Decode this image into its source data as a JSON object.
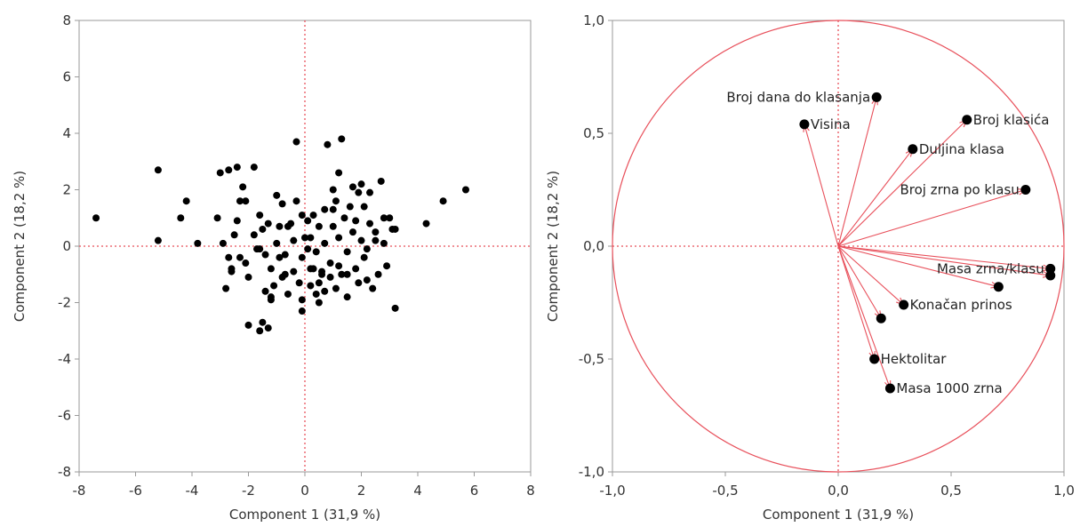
{
  "chart_data": [
    {
      "type": "scatter",
      "xlabel": "Component 1  (31,9 %)",
      "ylabel": "Component 2  (18,2 %)",
      "xlim": [
        -8,
        8
      ],
      "ylim": [
        -8,
        8
      ],
      "x_ticks": [
        "-8",
        "-6",
        "-4",
        "-2",
        "0",
        "2",
        "4",
        "6",
        "8"
      ],
      "y_ticks": [
        "-8",
        "-6",
        "-4",
        "-2",
        "0",
        "2",
        "4",
        "6",
        "8"
      ],
      "reference_lines": {
        "x": 0,
        "y": 0,
        "color": "#e8505b",
        "style": "dotted"
      },
      "point_color": "#000000",
      "points": [
        [
          -7.4,
          1.0
        ],
        [
          -5.2,
          2.7
        ],
        [
          -5.2,
          0.2
        ],
        [
          -4.2,
          1.6
        ],
        [
          -4.4,
          1.0
        ],
        [
          -3.8,
          0.1
        ],
        [
          -3.1,
          1.0
        ],
        [
          -3.0,
          2.6
        ],
        [
          -2.9,
          0.1
        ],
        [
          -2.7,
          -0.4
        ],
        [
          -2.8,
          -1.5
        ],
        [
          -2.6,
          -0.8
        ],
        [
          -2.7,
          2.7
        ],
        [
          -2.4,
          2.8
        ],
        [
          -2.3,
          1.6
        ],
        [
          -2.4,
          0.9
        ],
        [
          -2.3,
          -0.4
        ],
        [
          -2.5,
          0.4
        ],
        [
          -2.2,
          2.1
        ],
        [
          -2.1,
          1.6
        ],
        [
          -2.1,
          -0.6
        ],
        [
          -2.0,
          -2.8
        ],
        [
          -1.8,
          2.8
        ],
        [
          -1.8,
          0.4
        ],
        [
          -1.7,
          -0.1
        ],
        [
          -1.6,
          1.1
        ],
        [
          -1.5,
          0.6
        ],
        [
          -1.4,
          -0.3
        ],
        [
          -1.6,
          -3.0
        ],
        [
          -1.5,
          -2.7
        ],
        [
          -1.4,
          -1.6
        ],
        [
          -1.3,
          0.8
        ],
        [
          -1.2,
          -0.8
        ],
        [
          -1.2,
          -1.8
        ],
        [
          -1.1,
          -1.4
        ],
        [
          -1.0,
          1.8
        ],
        [
          -1.3,
          -2.9
        ],
        [
          -1.0,
          0.1
        ],
        [
          -0.9,
          -0.4
        ],
        [
          -0.9,
          0.7
        ],
        [
          -0.8,
          1.5
        ],
        [
          -0.7,
          -1.0
        ],
        [
          -0.7,
          -0.3
        ],
        [
          -0.6,
          -1.7
        ],
        [
          -0.5,
          0.8
        ],
        [
          -0.4,
          0.2
        ],
        [
          -0.4,
          -0.9
        ],
        [
          -0.3,
          1.6
        ],
        [
          -0.2,
          -1.3
        ],
        [
          -0.3,
          3.7
        ],
        [
          -0.1,
          -0.4
        ],
        [
          -0.1,
          1.1
        ],
        [
          -0.1,
          -1.9
        ],
        [
          -0.1,
          -2.3
        ],
        [
          0.1,
          0.9
        ],
        [
          0.1,
          -0.1
        ],
        [
          0.2,
          -0.8
        ],
        [
          0.2,
          0.3
        ],
        [
          0.2,
          -1.4
        ],
        [
          0.3,
          1.1
        ],
        [
          0.4,
          -0.2
        ],
        [
          0.5,
          0.7
        ],
        [
          0.5,
          -1.3
        ],
        [
          0.5,
          -2.0
        ],
        [
          0.6,
          -0.9
        ],
        [
          0.7,
          0.1
        ],
        [
          0.7,
          1.3
        ],
        [
          0.7,
          -1.6
        ],
        [
          0.8,
          3.6
        ],
        [
          0.9,
          -1.1
        ],
        [
          0.9,
          -0.6
        ],
        [
          1.0,
          0.7
        ],
        [
          1.0,
          2.0
        ],
        [
          1.1,
          -1.5
        ],
        [
          1.1,
          1.6
        ],
        [
          1.2,
          -0.7
        ],
        [
          1.2,
          2.6
        ],
        [
          1.2,
          0.3
        ],
        [
          1.3,
          3.8
        ],
        [
          1.3,
          -1.0
        ],
        [
          1.4,
          1.0
        ],
        [
          1.5,
          -0.2
        ],
        [
          1.5,
          -1.8
        ],
        [
          1.6,
          1.4
        ],
        [
          1.7,
          2.1
        ],
        [
          1.7,
          0.5
        ],
        [
          1.8,
          -0.8
        ],
        [
          1.9,
          1.9
        ],
        [
          1.9,
          -1.3
        ],
        [
          2.0,
          0.2
        ],
        [
          2.0,
          2.2
        ],
        [
          2.1,
          -0.4
        ],
        [
          2.1,
          1.4
        ],
        [
          2.2,
          -0.1
        ],
        [
          2.2,
          -1.2
        ],
        [
          2.3,
          0.8
        ],
        [
          2.3,
          1.9
        ],
        [
          2.4,
          -1.5
        ],
        [
          2.5,
          0.5
        ],
        [
          2.6,
          -1.0
        ],
        [
          2.7,
          2.3
        ],
        [
          2.8,
          1.0
        ],
        [
          2.8,
          0.1
        ],
        [
          2.9,
          -0.7
        ],
        [
          3.0,
          1.0
        ],
        [
          3.1,
          0.6
        ],
        [
          3.2,
          0.6
        ],
        [
          3.2,
          -2.2
        ],
        [
          4.3,
          0.8
        ],
        [
          4.9,
          1.6
        ],
        [
          5.7,
          2.0
        ],
        [
          -2.6,
          -0.9
        ],
        [
          -1.6,
          -0.1
        ],
        [
          -0.6,
          0.7
        ],
        [
          0.4,
          -1.7
        ],
        [
          1.0,
          1.3
        ],
        [
          -1.2,
          -1.9
        ],
        [
          0.6,
          -1.0
        ],
        [
          1.8,
          0.9
        ],
        [
          -2.0,
          -1.1
        ],
        [
          0.0,
          0.3
        ],
        [
          1.5,
          -1.0
        ],
        [
          2.5,
          0.2
        ],
        [
          -0.8,
          -1.1
        ],
        [
          0.3,
          -0.8
        ]
      ]
    },
    {
      "type": "scatter",
      "subtype": "loading-plot",
      "xlabel": "Component 1  (31,9 %)",
      "ylabel": "Component 2  (18,2 %)",
      "xlim": [
        -1.0,
        1.0
      ],
      "ylim": [
        -1.0,
        1.0
      ],
      "x_ticks": [
        "-1,0",
        "-0,5",
        "0,0",
        "0,5",
        "1,0"
      ],
      "y_ticks": [
        "-1,0",
        "-0,5",
        "0,0",
        "0,5",
        "1,0"
      ],
      "unit_circle": true,
      "reference_lines": {
        "x": 0,
        "y": 0,
        "color": "#e8505b",
        "style": "dotted"
      },
      "arrow_color": "#e8505b",
      "loadings": [
        {
          "label": "Broj dana do klasanja",
          "x": 0.17,
          "y": 0.66,
          "anchor": "end"
        },
        {
          "label": "Visina",
          "x": -0.15,
          "y": 0.54,
          "anchor": "start"
        },
        {
          "label": "Broj klasića",
          "x": 0.57,
          "y": 0.56,
          "anchor": "start"
        },
        {
          "label": "Duljina klasa",
          "x": 0.33,
          "y": 0.43,
          "anchor": "start"
        },
        {
          "label": "Broj zrna po klasu",
          "x": 0.83,
          "y": 0.25,
          "anchor": "end"
        },
        {
          "label": "Masa zrna/klasu",
          "x": 0.94,
          "y": -0.1,
          "anchor": "end"
        },
        {
          "label": "",
          "x": 0.94,
          "y": -0.13,
          "anchor": "end"
        },
        {
          "label": "",
          "x": 0.71,
          "y": -0.18,
          "anchor": "end"
        },
        {
          "label": "Konačan prinos",
          "x": 0.29,
          "y": -0.26,
          "anchor": "start"
        },
        {
          "label": "",
          "x": 0.19,
          "y": -0.32,
          "anchor": "start"
        },
        {
          "label": "Hektolitar",
          "x": 0.16,
          "y": -0.5,
          "anchor": "start"
        },
        {
          "label": "Masa 1000 zrna",
          "x": 0.23,
          "y": -0.63,
          "anchor": "start"
        }
      ]
    }
  ]
}
